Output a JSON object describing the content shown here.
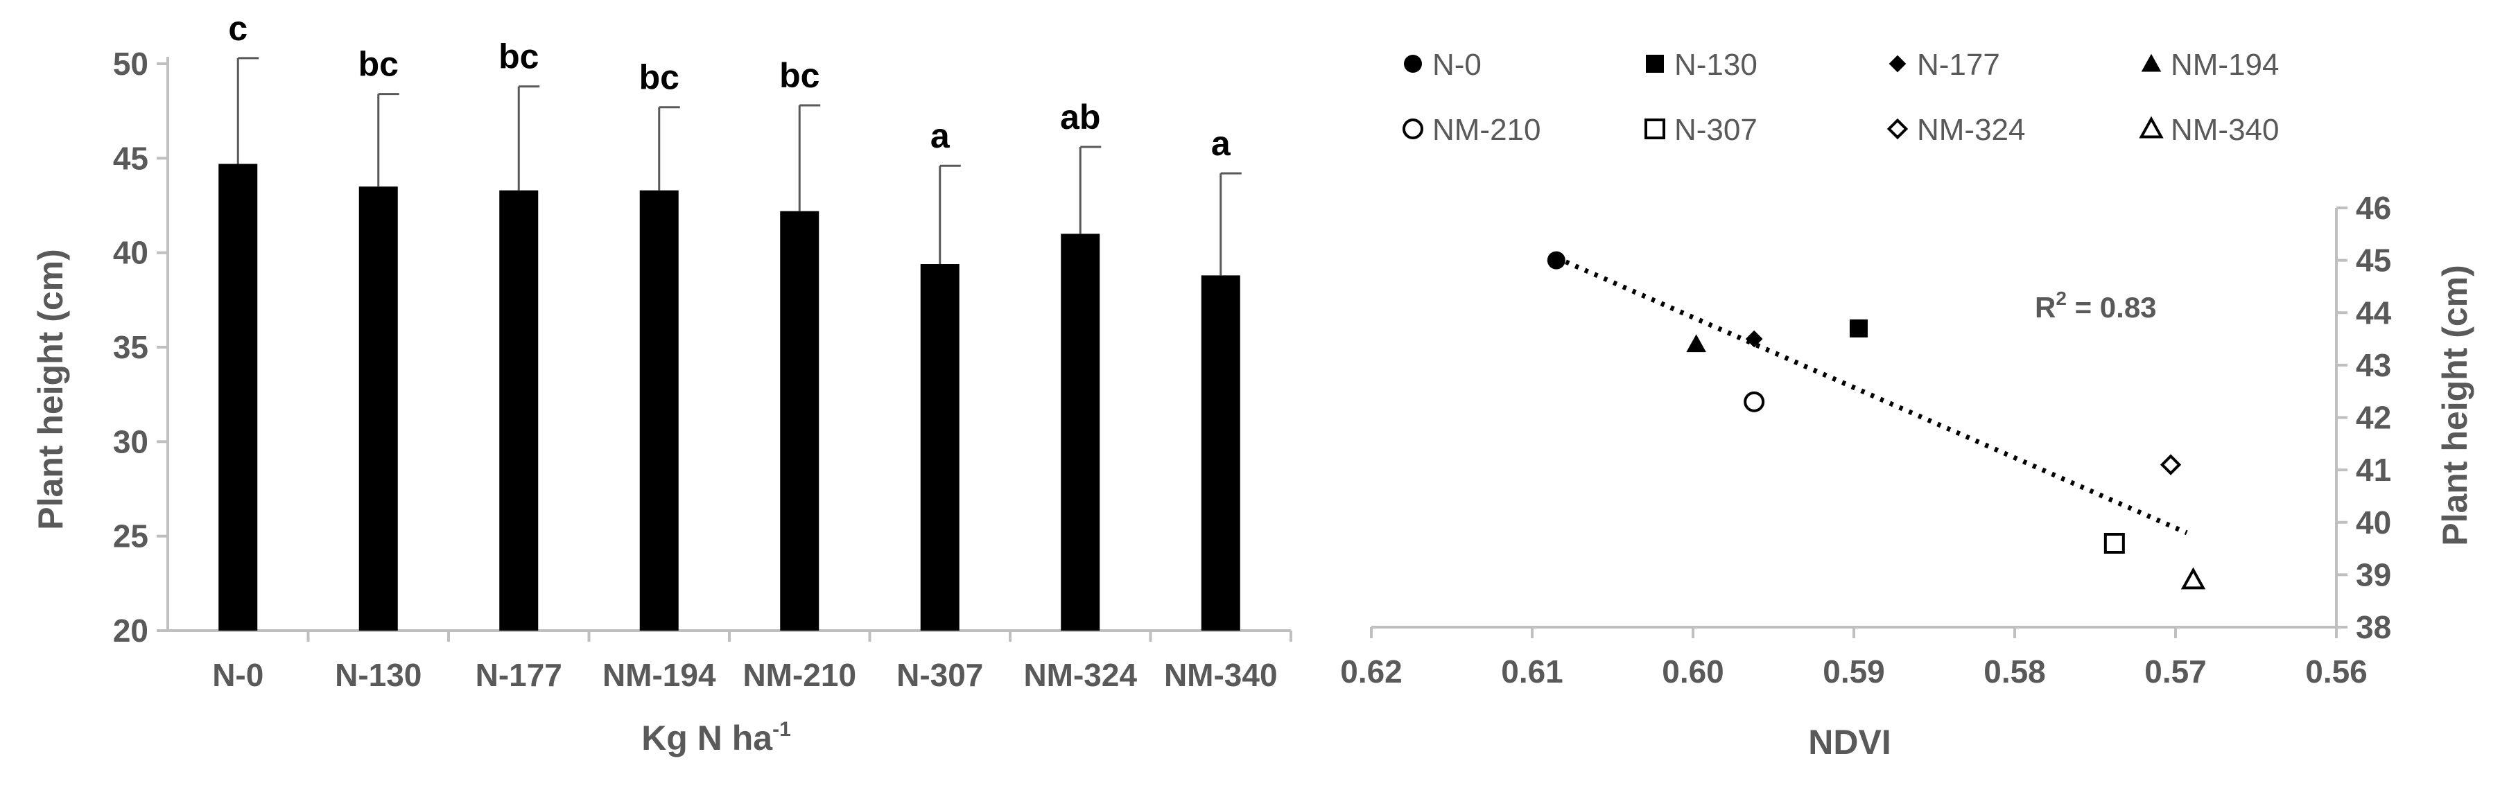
{
  "chart_data": [
    {
      "type": "bar",
      "categories": [
        "N-0",
        "N-130",
        "N-177",
        "NM-194",
        "NM-210",
        "N-307",
        "NM-324",
        "NM-340"
      ],
      "values": [
        44.7,
        43.5,
        43.3,
        43.3,
        42.2,
        39.4,
        41.0,
        38.8
      ],
      "error": [
        5.6,
        4.9,
        5.5,
        4.4,
        5.6,
        5.2,
        4.6,
        5.4
      ],
      "significance_letters": [
        "c",
        "bc",
        "bc",
        "bc",
        "bc",
        "a",
        "ab",
        "a"
      ],
      "xlabel": "Kg N ha",
      "xlabel_sup": "-1",
      "ylabel": "Plant height (cm)",
      "ylim": [
        20,
        50
      ],
      "yticks": [
        "20",
        "25",
        "30",
        "35",
        "40",
        "45",
        "50"
      ],
      "bar_color": "#000000",
      "error_bar_color": "#595959",
      "grid": false
    },
    {
      "type": "scatter",
      "points": [
        {
          "label": "N-0",
          "marker": "filled-circle",
          "x": 0.6085,
          "y": 45.0
        },
        {
          "label": "N-130",
          "marker": "filled-square",
          "x": 0.5897,
          "y": 43.7
        },
        {
          "label": "N-177",
          "marker": "filled-diamond",
          "x": 0.5962,
          "y": 43.5
        },
        {
          "label": "NM-194",
          "marker": "filled-triangle",
          "x": 0.5998,
          "y": 43.4
        },
        {
          "label": "NM-210",
          "marker": "open-circle",
          "x": 0.5962,
          "y": 42.3
        },
        {
          "label": "N-307",
          "marker": "open-square",
          "x": 0.5738,
          "y": 39.6
        },
        {
          "label": "NM-324",
          "marker": "open-diamond",
          "x": 0.5703,
          "y": 41.1
        },
        {
          "label": "NM-340",
          "marker": "open-triangle",
          "x": 0.5689,
          "y": 38.9
        }
      ],
      "trendline": {
        "style": "dotted",
        "x": [
          0.6085,
          0.5693
        ],
        "y": [
          45.05,
          39.8
        ]
      },
      "annotation": {
        "text_main": "R",
        "text_sup": "2",
        "text_rest": " = 0.83"
      },
      "xlabel": "NDVI",
      "ylabel": "Plant height (cm)",
      "xlim": [
        0.62,
        0.56
      ],
      "x_reversed": true,
      "xticks": [
        "0.62",
        "0.61",
        "0.60",
        "0.59",
        "0.58",
        "0.57",
        "0.56"
      ],
      "ylim": [
        38,
        46
      ],
      "yticks": [
        "38",
        "39",
        "40",
        "41",
        "42",
        "43",
        "44",
        "45",
        "46"
      ],
      "y_axis_side": "right",
      "legend": {
        "position": "top",
        "entries": [
          {
            "label": "N-0",
            "marker": "filled-circle"
          },
          {
            "label": "N-130",
            "marker": "filled-square"
          },
          {
            "label": "N-177",
            "marker": "filled-diamond"
          },
          {
            "label": "NM-194",
            "marker": "filled-triangle"
          },
          {
            "label": "NM-210",
            "marker": "open-circle"
          },
          {
            "label": "N-307",
            "marker": "open-square"
          },
          {
            "label": "NM-324",
            "marker": "open-diamond"
          },
          {
            "label": "NM-340",
            "marker": "open-triangle"
          }
        ]
      },
      "grid": false
    }
  ]
}
